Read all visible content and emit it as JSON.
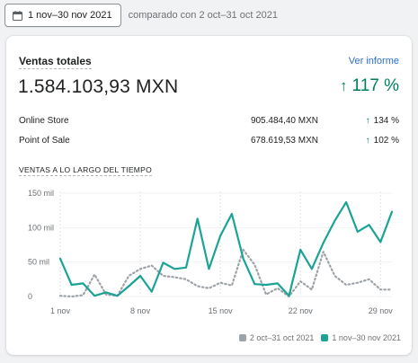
{
  "toolbar": {
    "date_range_label": "1 nov–30 nov 2021",
    "compare_text": "comparado con 2 oct–31 oct 2021"
  },
  "card": {
    "title": "Ventas totales",
    "view_report": "Ver informe",
    "total_value": "1.584.103,93 MXN",
    "total_change": "117 %",
    "breakdown": [
      {
        "label": "Online Store",
        "amount": "905.484,40 MXN",
        "change": "134 %"
      },
      {
        "label": "Point of Sale",
        "amount": "678.619,53 MXN",
        "change": "102 %"
      }
    ],
    "chart_heading": "VENTAS A LO LARGO DEL TIEMPO"
  },
  "colors": {
    "current": "#1ba396",
    "previous": "#9ea3a8",
    "positive": "#007f5f",
    "link": "#2c6ecb"
  },
  "chart_data": {
    "type": "line",
    "y_tick_labels": [
      "0",
      "50 mil",
      "100 mil",
      "150 mil"
    ],
    "y_ticks": [
      0,
      50000,
      100000,
      150000
    ],
    "ylim": [
      0,
      150000
    ],
    "x_tick_labels": [
      "1 nov",
      "8 nov",
      "15 nov",
      "22 nov",
      "29 nov"
    ],
    "x_tick_days": [
      1,
      8,
      15,
      22,
      29
    ],
    "x": [
      1,
      2,
      3,
      4,
      5,
      6,
      7,
      8,
      9,
      10,
      11,
      12,
      13,
      14,
      15,
      16,
      17,
      18,
      19,
      20,
      21,
      22,
      23,
      24,
      25,
      26,
      27,
      28,
      29,
      30
    ],
    "series": [
      {
        "name": "1 nov–30 nov 2021",
        "style": "solid",
        "values": [
          55000,
          17000,
          19000,
          1000,
          6000,
          1000,
          15000,
          30000,
          7000,
          49000,
          40000,
          42000,
          113000,
          40000,
          88000,
          120000,
          55000,
          18000,
          17000,
          19000,
          1000,
          68000,
          40000,
          78000,
          110000,
          137000,
          94000,
          104000,
          79000,
          123000
        ]
      },
      {
        "name": "2 oct–31 oct 2021",
        "style": "dotted",
        "values": [
          1000,
          0,
          2000,
          32000,
          3000,
          1000,
          30000,
          40000,
          45000,
          30000,
          28000,
          25000,
          15000,
          12000,
          20000,
          16000,
          68000,
          46000,
          3000,
          12000,
          0,
          22000,
          10000,
          65000,
          30000,
          17000,
          20000,
          25000,
          10000,
          10000
        ]
      }
    ],
    "legend_position": "bottom-right",
    "grid": "vertical-dotted"
  }
}
